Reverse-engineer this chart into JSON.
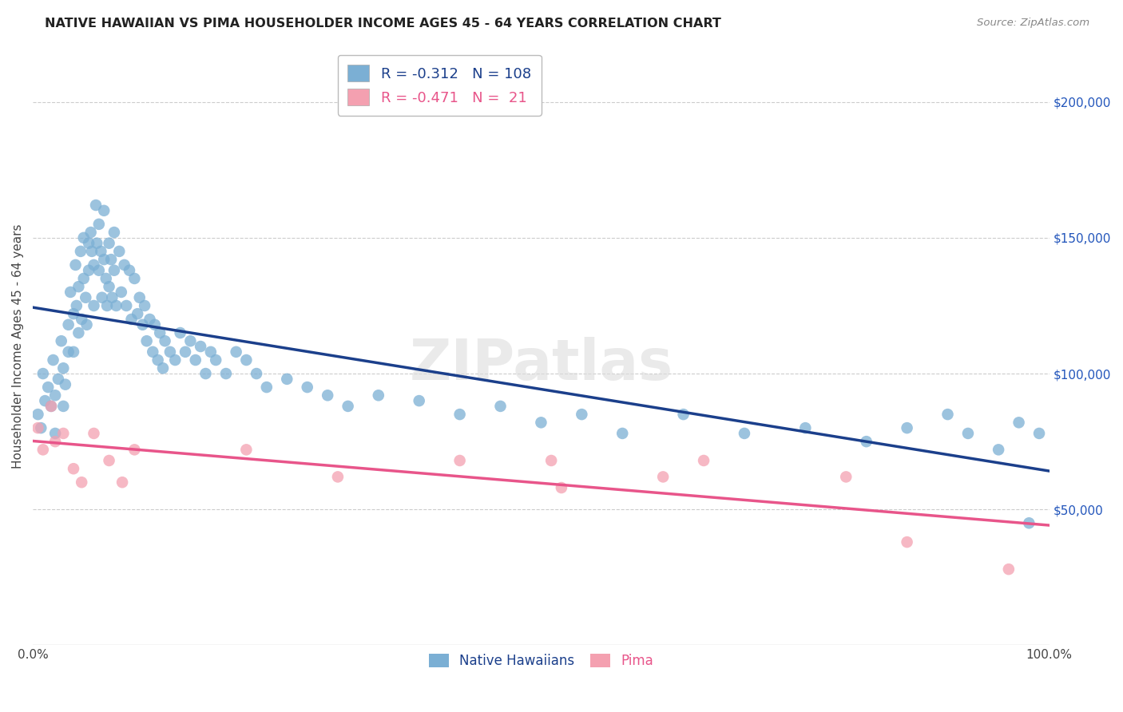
{
  "title": "NATIVE HAWAIIAN VS PIMA HOUSEHOLDER INCOME AGES 45 - 64 YEARS CORRELATION CHART",
  "source": "Source: ZipAtlas.com",
  "ylabel": "Householder Income Ages 45 - 64 years",
  "xmin": 0.0,
  "xmax": 1.0,
  "ymin": 0,
  "ymax": 220000,
  "yticks": [
    50000,
    100000,
    150000,
    200000
  ],
  "blue_color": "#7BAFD4",
  "blue_line_color": "#1B3F8B",
  "pink_color": "#F4A0B0",
  "pink_line_color": "#E8558A",
  "blue_R": -0.312,
  "blue_N": 108,
  "pink_R": -0.471,
  "pink_N": 21,
  "blue_scatter_x": [
    0.005,
    0.008,
    0.01,
    0.012,
    0.015,
    0.018,
    0.02,
    0.022,
    0.022,
    0.025,
    0.028,
    0.03,
    0.03,
    0.032,
    0.035,
    0.035,
    0.037,
    0.04,
    0.04,
    0.042,
    0.043,
    0.045,
    0.045,
    0.047,
    0.048,
    0.05,
    0.05,
    0.052,
    0.053,
    0.055,
    0.055,
    0.057,
    0.058,
    0.06,
    0.06,
    0.062,
    0.063,
    0.065,
    0.065,
    0.067,
    0.068,
    0.07,
    0.07,
    0.072,
    0.073,
    0.075,
    0.075,
    0.077,
    0.078,
    0.08,
    0.08,
    0.082,
    0.085,
    0.087,
    0.09,
    0.092,
    0.095,
    0.097,
    0.1,
    0.103,
    0.105,
    0.108,
    0.11,
    0.112,
    0.115,
    0.118,
    0.12,
    0.123,
    0.125,
    0.128,
    0.13,
    0.135,
    0.14,
    0.145,
    0.15,
    0.155,
    0.16,
    0.165,
    0.17,
    0.175,
    0.18,
    0.19,
    0.2,
    0.21,
    0.22,
    0.23,
    0.25,
    0.27,
    0.29,
    0.31,
    0.34,
    0.38,
    0.42,
    0.46,
    0.5,
    0.54,
    0.58,
    0.64,
    0.7,
    0.76,
    0.82,
    0.86,
    0.9,
    0.92,
    0.95,
    0.97,
    0.98,
    0.99
  ],
  "blue_scatter_y": [
    85000,
    80000,
    100000,
    90000,
    95000,
    88000,
    105000,
    92000,
    78000,
    98000,
    112000,
    88000,
    102000,
    96000,
    118000,
    108000,
    130000,
    122000,
    108000,
    140000,
    125000,
    115000,
    132000,
    145000,
    120000,
    150000,
    135000,
    128000,
    118000,
    148000,
    138000,
    152000,
    145000,
    140000,
    125000,
    162000,
    148000,
    155000,
    138000,
    145000,
    128000,
    160000,
    142000,
    135000,
    125000,
    148000,
    132000,
    142000,
    128000,
    152000,
    138000,
    125000,
    145000,
    130000,
    140000,
    125000,
    138000,
    120000,
    135000,
    122000,
    128000,
    118000,
    125000,
    112000,
    120000,
    108000,
    118000,
    105000,
    115000,
    102000,
    112000,
    108000,
    105000,
    115000,
    108000,
    112000,
    105000,
    110000,
    100000,
    108000,
    105000,
    100000,
    108000,
    105000,
    100000,
    95000,
    98000,
    95000,
    92000,
    88000,
    92000,
    90000,
    85000,
    88000,
    82000,
    85000,
    78000,
    85000,
    78000,
    80000,
    75000,
    80000,
    85000,
    78000,
    72000,
    82000,
    45000,
    78000
  ],
  "pink_scatter_x": [
    0.005,
    0.01,
    0.018,
    0.022,
    0.03,
    0.04,
    0.048,
    0.06,
    0.075,
    0.088,
    0.1,
    0.21,
    0.3,
    0.42,
    0.51,
    0.52,
    0.62,
    0.66,
    0.8,
    0.86,
    0.96
  ],
  "pink_scatter_y": [
    80000,
    72000,
    88000,
    75000,
    78000,
    65000,
    60000,
    78000,
    68000,
    60000,
    72000,
    72000,
    62000,
    68000,
    68000,
    58000,
    62000,
    68000,
    62000,
    38000,
    28000
  ],
  "watermark": "ZIPatlas",
  "bottom_legend_blue": "Native Hawaiians",
  "bottom_legend_pink": "Pima"
}
